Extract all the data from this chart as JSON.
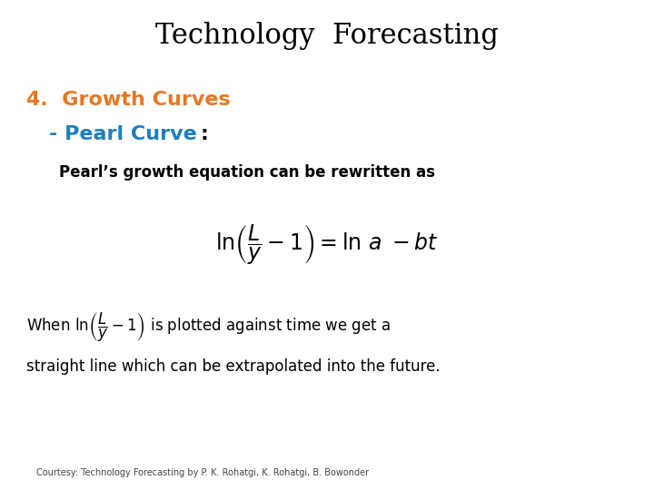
{
  "title": "Technology  Forecasting",
  "title_fontsize": 22,
  "title_color": "#000000",
  "heading_text": "4.  Growth Curves",
  "heading_color": "#E87722",
  "heading_fontsize": 16,
  "subheading_color": "#1F7FBF",
  "subheading_fontsize": 16,
  "body_text": "Pearl’s growth equation can be rewritten as",
  "body_fontsize": 12,
  "body_color": "#000000",
  "equation_fontsize": 17,
  "para_fontsize": 12,
  "para_color": "#000000",
  "para_text3": "straight line which can be extrapolated into the future.",
  "courtesy_text": "Courtesy: Technology Forecasting by P. K. Rohatgi, K. Rohatgi, B. Bowonder",
  "courtesy_fontsize": 7,
  "courtesy_color": "#444444",
  "bg_color": "#FFFFFF"
}
